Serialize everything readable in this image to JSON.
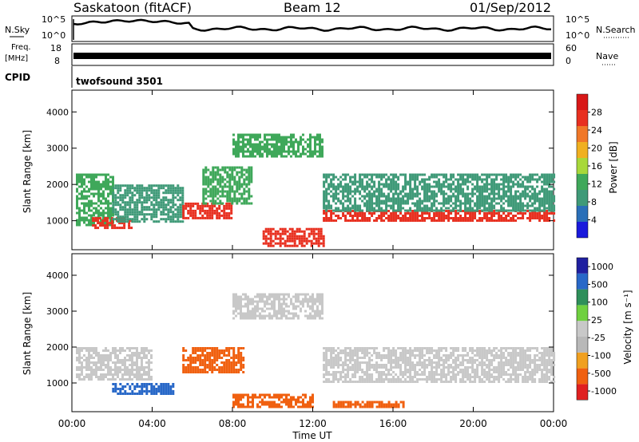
{
  "header": {
    "station": "Saskatoon (fitACF)",
    "beam": "Beam 12",
    "date": "01/Sep/2012"
  },
  "nsky_panel": {
    "label_left": "N.Sky",
    "label_right": "N.Search",
    "ticks_left": [
      "10^5",
      "10^0"
    ],
    "ticks_right": [
      "10^5",
      "10^0"
    ]
  },
  "freq_panel": {
    "label_left_top": "Freq.",
    "label_left_bottom": "[MHz]",
    "label_right": "Nave",
    "ticks_left": [
      "18",
      "8"
    ],
    "ticks_right": [
      "60",
      "0"
    ]
  },
  "cpid": {
    "label": "CPID",
    "value": "twofsound 3501"
  },
  "colors": {
    "power": [
      "#1a1adc",
      "#2a6fb8",
      "#3f9a78",
      "#3fa85a",
      "#a8d83a",
      "#f0b020",
      "#f07828",
      "#e83020",
      "#d81818"
    ],
    "velocity": [
      "#2020a0",
      "#2868c8",
      "#2e8f5a",
      "#6fd040",
      "#c8c8c8",
      "#b8b8b8",
      "#f0a020",
      "#f06010",
      "#e02020"
    ]
  },
  "chart_data": [
    {
      "type": "heatmap",
      "ylabel": "Slant Range [km]",
      "yticks": [
        "1000",
        "2000",
        "3000",
        "4000"
      ],
      "ylim": [
        200,
        4600
      ],
      "x_unit": "hours UT",
      "xlim": [
        0,
        24
      ],
      "colorbar": {
        "label": "Power [dB]",
        "ticks": [
          "4",
          "8",
          "12",
          "16",
          "20",
          "24",
          "28"
        ],
        "range": [
          0,
          32
        ]
      },
      "regions": [
        {
          "x_start": 0.2,
          "x_end": 2.0,
          "range_low": 900,
          "range_high": 2300,
          "value": 12
        },
        {
          "x_start": 1.0,
          "x_end": 3.0,
          "range_low": 800,
          "range_high": 1100,
          "value": 26
        },
        {
          "x_start": 2.0,
          "x_end": 5.5,
          "range_low": 1000,
          "range_high": 2000,
          "value": 10
        },
        {
          "x_start": 5.5,
          "x_end": 8.0,
          "range_low": 1100,
          "range_high": 1500,
          "value": 26
        },
        {
          "x_start": 6.5,
          "x_end": 9.0,
          "range_low": 1500,
          "range_high": 2500,
          "value": 14
        },
        {
          "x_start": 8.0,
          "x_end": 12.5,
          "range_low": 2800,
          "range_high": 3400,
          "value": 12
        },
        {
          "x_start": 9.5,
          "x_end": 12.5,
          "range_low": 300,
          "range_high": 800,
          "value": 28
        },
        {
          "x_start": 12.5,
          "x_end": 24.0,
          "range_low": 1000,
          "range_high": 1300,
          "value": 27
        },
        {
          "x_start": 12.5,
          "x_end": 24.0,
          "range_low": 1300,
          "range_high": 2300,
          "value": 10
        }
      ]
    },
    {
      "type": "heatmap",
      "ylabel": "Slant Range [km]",
      "yticks": [
        "1000",
        "2000",
        "3000",
        "4000"
      ],
      "ylim": [
        200,
        4600
      ],
      "x_unit": "hours UT",
      "xlim": [
        0,
        24
      ],
      "xticks": [
        "00:00",
        "04:00",
        "08:00",
        "12:00",
        "16:00",
        "20:00",
        "00:00"
      ],
      "xlabel": "Time UT",
      "colorbar": {
        "label": "Velocity [m s⁻¹]",
        "ticks": [
          "1000",
          "500",
          "100",
          "25",
          "-25",
          "-100",
          "-500",
          "-1000"
        ]
      },
      "regions": [
        {
          "x_start": 0.2,
          "x_end": 4.0,
          "range_low": 1100,
          "range_high": 2000,
          "value": 0
        },
        {
          "x_start": 2.0,
          "x_end": 5.0,
          "range_low": 700,
          "range_high": 1000,
          "value": 300
        },
        {
          "x_start": 5.5,
          "x_end": 8.5,
          "range_low": 1300,
          "range_high": 2000,
          "value": -300
        },
        {
          "x_start": 8.0,
          "x_end": 12.5,
          "range_low": 2800,
          "range_high": 3500,
          "value": 0
        },
        {
          "x_start": 8.0,
          "x_end": 12.0,
          "range_low": 300,
          "range_high": 700,
          "value": -150
        },
        {
          "x_start": 12.5,
          "x_end": 24.0,
          "range_low": 1000,
          "range_high": 2000,
          "value": 0
        },
        {
          "x_start": 13.0,
          "x_end": 16.5,
          "range_low": 300,
          "range_high": 500,
          "value": -150
        }
      ]
    }
  ]
}
